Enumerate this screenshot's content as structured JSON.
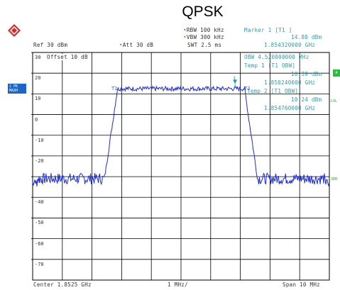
{
  "title": "QPSK",
  "header": {
    "rbw": "RBW 100 kHz",
    "vbw": "VBW 300 kHz",
    "swt": "SWT 2.5 ms",
    "marker_title": "Marker 1 [T1 ]",
    "marker_level": "14.80 dBm",
    "marker_freq": "1.854320000 GHz",
    "ref": "Ref  30 dBm",
    "att": "Att  30 dB"
  },
  "overlay": {
    "offset": "Offset  10 dB",
    "obw": "OBW  4.520000000 MHz",
    "temp1": "Temp 1 [T1 OBW]",
    "temp1_level": "10.39 dBm",
    "temp1_freq": "1.850240000 GHz",
    "temp2": "Temp 2 [T1 OBW]",
    "temp2_level": "10.24 dBm",
    "temp2_freq": "1.854760000 GHz"
  },
  "side": {
    "badge_line1": "1 PK",
    "badge_line2": "MAXH",
    "flag_a": "A",
    "lvl": "LVL",
    "db3": "3DB"
  },
  "y_ticks": [
    "30",
    "20",
    "10",
    "0",
    "-10",
    "-20",
    "-30",
    "-40",
    "-50",
    "-60",
    "-70"
  ],
  "footer": {
    "center": "Center 1.8525 GHz",
    "div": "1 MHz/",
    "span": "Span 10 MHz"
  },
  "trace_labels": {
    "t1": "T1",
    "t2": "T2",
    "m1": "1"
  },
  "colors": {
    "trace": "#1b2be0",
    "marker": "#2a9dab",
    "grid": "#000000"
  },
  "trace": {
    "x_start_mhz": -5,
    "x_end_mhz": 5,
    "y_min_dbm": -80,
    "y_max_dbm": 30,
    "floor_dbm": -31,
    "top_dbm": 12.5,
    "edge_left_mhz": -2.26,
    "edge_right_mhz": 2.26,
    "marker_x_mhz": 1.82,
    "marker_y_dbm": 14.8
  }
}
